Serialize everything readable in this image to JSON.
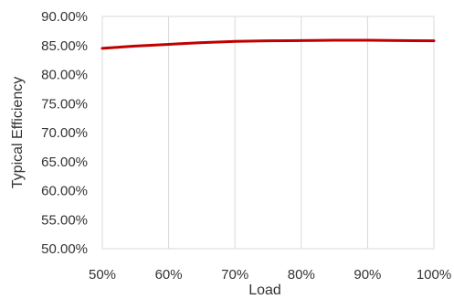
{
  "chart_data": {
    "type": "line",
    "title": "",
    "xlabel": "Load",
    "ylabel": "Typical Efficiency",
    "x": [
      50,
      55,
      60,
      65,
      70,
      75,
      80,
      85,
      90,
      95,
      100
    ],
    "x_tick_labels": [
      "50%",
      "60%",
      "70%",
      "80%",
      "90%",
      "100%"
    ],
    "x_ticks": [
      50,
      60,
      70,
      80,
      90,
      100
    ],
    "xlim": [
      50,
      100
    ],
    "y_tick_labels": [
      "50.00%",
      "55.00%",
      "60.00%",
      "65.00%",
      "70.00%",
      "75.00%",
      "80.00%",
      "85.00%",
      "90.00%"
    ],
    "y_ticks": [
      50,
      55,
      60,
      65,
      70,
      75,
      80,
      85,
      90
    ],
    "ylim": [
      50,
      90
    ],
    "grid": "vertical",
    "series": [
      {
        "values": [
          84.5,
          84.9,
          85.2,
          85.5,
          85.7,
          85.8,
          85.85,
          85.9,
          85.9,
          85.85,
          85.8
        ],
        "color": "#c00000"
      }
    ],
    "colors": {
      "line": "#c00000",
      "grid": "#d9d9d9",
      "text": "#333333"
    }
  }
}
